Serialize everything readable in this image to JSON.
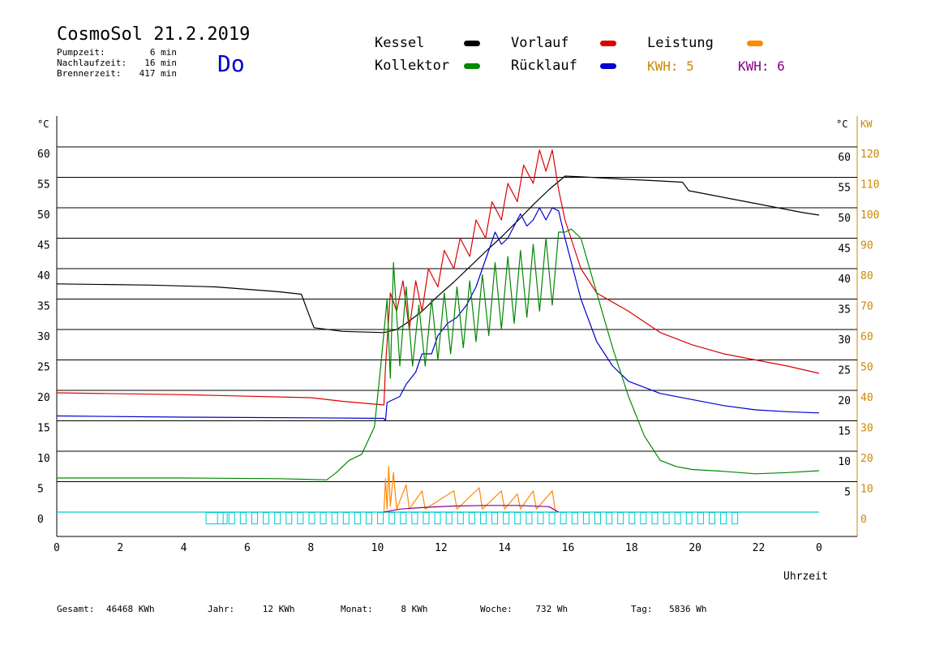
{
  "header": {
    "title": "CosmoSol 21.2.2019",
    "day": "Do",
    "info": [
      {
        "label": "Pumpzeit:",
        "value": "6 min"
      },
      {
        "label": "Nachlaufzeit:",
        "value": "16 min"
      },
      {
        "label": "Brennerzeit:",
        "value": "417 min"
      }
    ]
  },
  "legend": {
    "kessel": {
      "label": "Kessel",
      "color": "#000000"
    },
    "vorlauf": {
      "label": "Vorlauf",
      "color": "#dd0000"
    },
    "leistung": {
      "label": "Leistung",
      "color": "#ff8800"
    },
    "kollektor": {
      "label": "Kollektor",
      "color": "#008800"
    },
    "ruecklauf": {
      "label": "Rücklauf",
      "color": "#0000cc"
    },
    "kwh1": {
      "text": "KWH: 5",
      "color": "#cc8800"
    },
    "kwh2": {
      "text": "KWH: 6",
      "color": "#880088"
    }
  },
  "footer": {
    "gesamt_label": "Gesamt:",
    "gesamt_value": "46468 KWh",
    "jahr_label": "Jahr:",
    "jahr_value": "12 KWh",
    "monat_label": "Monat:",
    "monat_value": "8 KWh",
    "woche_label": "Woche:",
    "woche_value": "732 Wh",
    "tag_label": "Tag:",
    "tag_value": "5836 Wh"
  },
  "chart_data": {
    "type": "line",
    "grid": true,
    "xlabel": "Uhrzeit",
    "y_unit_left": "°C",
    "y_unit_right": "°C",
    "y2_unit": "KW",
    "xlim": [
      0,
      24
    ],
    "ylim": [
      0,
      60
    ],
    "y2lim": [
      0,
      120
    ],
    "x_ticks": [
      "0",
      "2",
      "4",
      "6",
      "8",
      "10",
      "12",
      "14",
      "16",
      "18",
      "20",
      "22",
      "0"
    ],
    "y_ticks_left": [
      "0",
      "5",
      "10",
      "15",
      "20",
      "25",
      "30",
      "35",
      "40",
      "45",
      "50",
      "55",
      "60"
    ],
    "y_ticks_right": [
      "5",
      "10",
      "15",
      "20",
      "25",
      "30",
      "35",
      "40",
      "45",
      "50",
      "55",
      "60"
    ],
    "y2_ticks": [
      "0",
      "10",
      "20",
      "30",
      "40",
      "50",
      "60",
      "70",
      "80",
      "90",
      "100",
      "110",
      "120"
    ],
    "series": [
      {
        "name": "Kessel",
        "color": "#000000",
        "points": [
          [
            0,
            37.5
          ],
          [
            3,
            37.3
          ],
          [
            5,
            37
          ],
          [
            7,
            36.2
          ],
          [
            7.7,
            35.8
          ],
          [
            7.9,
            33
          ],
          [
            8.1,
            30.3
          ],
          [
            9,
            29.7
          ],
          [
            10.3,
            29.5
          ],
          [
            10.7,
            30
          ],
          [
            11,
            31
          ],
          [
            11.5,
            33
          ],
          [
            12,
            35.5
          ],
          [
            12.5,
            37.8
          ],
          [
            13,
            40.3
          ],
          [
            13.5,
            42.8
          ],
          [
            14,
            45.2
          ],
          [
            14.5,
            47.8
          ],
          [
            15,
            50.5
          ],
          [
            15.5,
            53
          ],
          [
            16,
            55.2
          ],
          [
            16.5,
            55.1
          ],
          [
            17.5,
            54.8
          ],
          [
            19,
            54.4
          ],
          [
            19.7,
            54.2
          ],
          [
            19.9,
            52.8
          ],
          [
            20.5,
            52.2
          ],
          [
            21.5,
            51.2
          ],
          [
            22.5,
            50.2
          ],
          [
            23.5,
            49.2
          ],
          [
            24,
            48.8
          ]
        ]
      },
      {
        "name": "Vorlauf",
        "color": "#dd0000",
        "points": [
          [
            0,
            19.6
          ],
          [
            4,
            19.3
          ],
          [
            8,
            18.8
          ],
          [
            9,
            18.2
          ],
          [
            10.3,
            17.6
          ],
          [
            10.35,
            24
          ],
          [
            10.5,
            36
          ],
          [
            10.7,
            33
          ],
          [
            10.9,
            38
          ],
          [
            11.1,
            30
          ],
          [
            11.3,
            38
          ],
          [
            11.5,
            33
          ],
          [
            11.7,
            40
          ],
          [
            12,
            37
          ],
          [
            12.2,
            43
          ],
          [
            12.5,
            40
          ],
          [
            12.7,
            45
          ],
          [
            13,
            42
          ],
          [
            13.2,
            48
          ],
          [
            13.5,
            45
          ],
          [
            13.7,
            51
          ],
          [
            14,
            48
          ],
          [
            14.2,
            54
          ],
          [
            14.5,
            51
          ],
          [
            14.7,
            57
          ],
          [
            15,
            54
          ],
          [
            15.2,
            59.5
          ],
          [
            15.4,
            56
          ],
          [
            15.6,
            59.5
          ],
          [
            15.8,
            53
          ],
          [
            16,
            48
          ],
          [
            16.5,
            40
          ],
          [
            17,
            36
          ],
          [
            17.5,
            34.5
          ],
          [
            18,
            33
          ],
          [
            19,
            29.5
          ],
          [
            20,
            27.5
          ],
          [
            21,
            26
          ],
          [
            22,
            25
          ],
          [
            23,
            24
          ],
          [
            24,
            22.8
          ]
        ]
      },
      {
        "name": "Rücklauf",
        "color": "#0000cc",
        "points": [
          [
            0,
            15.8
          ],
          [
            4,
            15.6
          ],
          [
            8,
            15.5
          ],
          [
            10.3,
            15.4
          ],
          [
            10.35,
            15
          ],
          [
            10.4,
            18
          ],
          [
            10.8,
            19
          ],
          [
            11,
            21
          ],
          [
            11.3,
            23
          ],
          [
            11.5,
            26
          ],
          [
            11.8,
            26
          ],
          [
            12,
            29
          ],
          [
            12.3,
            31
          ],
          [
            12.6,
            32
          ],
          [
            12.9,
            34
          ],
          [
            13.2,
            37
          ],
          [
            13.4,
            40
          ],
          [
            13.6,
            43
          ],
          [
            13.8,
            46
          ],
          [
            14,
            44
          ],
          [
            14.2,
            45
          ],
          [
            14.4,
            47
          ],
          [
            14.6,
            49
          ],
          [
            14.8,
            47
          ],
          [
            15,
            48
          ],
          [
            15.2,
            50
          ],
          [
            15.4,
            48
          ],
          [
            15.6,
            50
          ],
          [
            15.8,
            49.5
          ],
          [
            16,
            45
          ],
          [
            16.5,
            35
          ],
          [
            17,
            28
          ],
          [
            17.5,
            24
          ],
          [
            18,
            21.5
          ],
          [
            19,
            19.5
          ],
          [
            20,
            18.5
          ],
          [
            21,
            17.5
          ],
          [
            22,
            16.8
          ],
          [
            23,
            16.5
          ],
          [
            24,
            16.3
          ]
        ]
      },
      {
        "name": "Kollektor",
        "color": "#008800",
        "points": [
          [
            0,
            5.6
          ],
          [
            4,
            5.6
          ],
          [
            7,
            5.5
          ],
          [
            8.5,
            5.3
          ],
          [
            8.8,
            6.5
          ],
          [
            9.2,
            8.5
          ],
          [
            9.6,
            9.5
          ],
          [
            10,
            14
          ],
          [
            10.2,
            24
          ],
          [
            10.4,
            35
          ],
          [
            10.5,
            22
          ],
          [
            10.6,
            41
          ],
          [
            10.8,
            24
          ],
          [
            11,
            37
          ],
          [
            11.2,
            24
          ],
          [
            11.4,
            34
          ],
          [
            11.6,
            24
          ],
          [
            11.8,
            35
          ],
          [
            12,
            25
          ],
          [
            12.2,
            36
          ],
          [
            12.4,
            26
          ],
          [
            12.6,
            37
          ],
          [
            12.8,
            27
          ],
          [
            13,
            38
          ],
          [
            13.2,
            28
          ],
          [
            13.4,
            39
          ],
          [
            13.6,
            29
          ],
          [
            13.8,
            41
          ],
          [
            14,
            30
          ],
          [
            14.2,
            42
          ],
          [
            14.4,
            31
          ],
          [
            14.6,
            43
          ],
          [
            14.8,
            32
          ],
          [
            15,
            44
          ],
          [
            15.2,
            33
          ],
          [
            15.4,
            45
          ],
          [
            15.6,
            34
          ],
          [
            15.8,
            46
          ],
          [
            16,
            46
          ],
          [
            16.2,
            46.5
          ],
          [
            16.5,
            45
          ],
          [
            17,
            36
          ],
          [
            17.5,
            27
          ],
          [
            18,
            19
          ],
          [
            18.5,
            12.5
          ],
          [
            19,
            8.5
          ],
          [
            19.5,
            7.5
          ],
          [
            20,
            7
          ],
          [
            21,
            6.7
          ],
          [
            22,
            6.3
          ],
          [
            23,
            6.5
          ],
          [
            24,
            6.8
          ]
        ]
      },
      {
        "name": "Leistung",
        "color": "#ff8800",
        "axis": "right",
        "points": [
          [
            10.3,
            0
          ],
          [
            10.35,
            11
          ],
          [
            10.4,
            1
          ],
          [
            10.45,
            15
          ],
          [
            10.5,
            2
          ],
          [
            10.6,
            13
          ],
          [
            10.7,
            1
          ],
          [
            11,
            9
          ],
          [
            11.1,
            1
          ],
          [
            11.5,
            7
          ],
          [
            11.6,
            1
          ],
          [
            12.5,
            7
          ],
          [
            12.6,
            1
          ],
          [
            13.3,
            8
          ],
          [
            13.4,
            1
          ],
          [
            14,
            7
          ],
          [
            14.1,
            1
          ],
          [
            14.5,
            6
          ],
          [
            14.6,
            1
          ],
          [
            15,
            7
          ],
          [
            15.1,
            1
          ],
          [
            15.6,
            7
          ],
          [
            15.7,
            0
          ]
        ]
      },
      {
        "name": "KWH",
        "color": "#880088",
        "axis": "right",
        "points": [
          [
            10.3,
            0
          ],
          [
            10.8,
            1
          ],
          [
            11.5,
            1.5
          ],
          [
            12.5,
            2
          ],
          [
            13.5,
            2.2
          ],
          [
            14.5,
            2.2
          ],
          [
            15.5,
            1.8
          ],
          [
            15.8,
            0
          ]
        ]
      }
    ]
  }
}
